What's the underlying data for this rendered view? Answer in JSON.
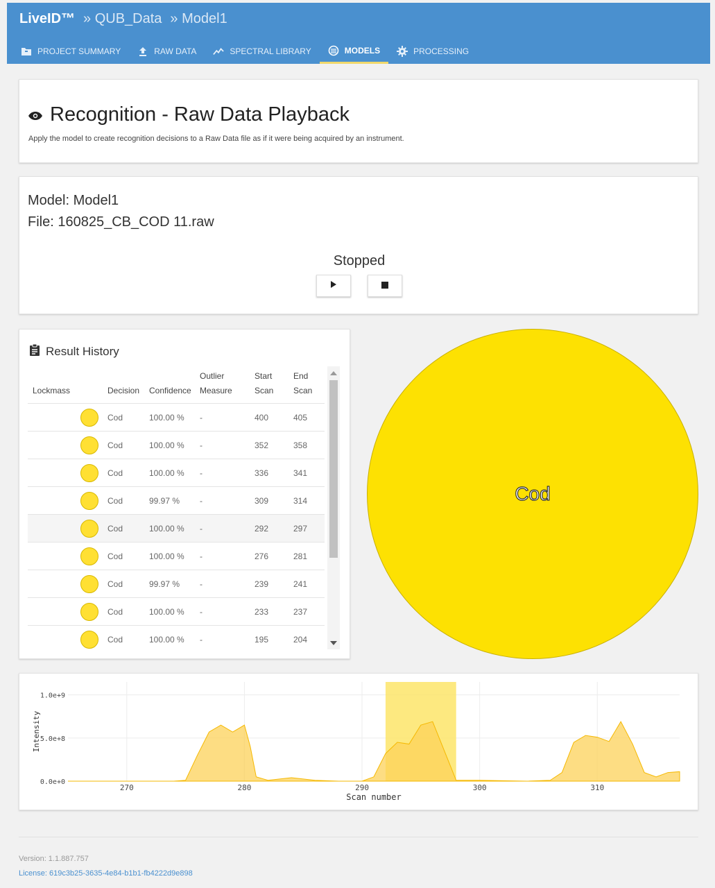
{
  "breadcrumb": {
    "brand": "LiveID™",
    "project": "» QUB_Data",
    "model": "» Model1"
  },
  "nav": [
    {
      "label": "PROJECT SUMMARY",
      "icon": "folder-icon"
    },
    {
      "label": "RAW DATA",
      "icon": "upload-icon"
    },
    {
      "label": "SPECTRAL LIBRARY",
      "icon": "line-chart-icon"
    },
    {
      "label": "MODELS",
      "icon": "globe-icon",
      "active": true
    },
    {
      "label": "PROCESSING",
      "icon": "gear-icon"
    }
  ],
  "header": {
    "title": "Recognition - Raw Data Playback",
    "description": "Apply the model to create recognition decisions to a Raw Data file as if it were being acquired by an instrument."
  },
  "playback": {
    "model": "Model: Model1",
    "file": "File: 160825_CB_COD 11.raw",
    "status": "Stopped"
  },
  "history": {
    "title": "Result History",
    "columns": {
      "lockmass": "Lockmass",
      "decision": "Decision",
      "confidence": "Confidence",
      "outlier": [
        "Outlier",
        "Measure"
      ],
      "start": [
        "Start",
        "Scan"
      ],
      "end": [
        "End",
        "Scan"
      ]
    },
    "rows": [
      {
        "decision": "Cod",
        "confidence": "100.00 %",
        "outlier": "-",
        "start": "400",
        "end": "405"
      },
      {
        "decision": "Cod",
        "confidence": "100.00 %",
        "outlier": "-",
        "start": "352",
        "end": "358"
      },
      {
        "decision": "Cod",
        "confidence": "100.00 %",
        "outlier": "-",
        "start": "336",
        "end": "341"
      },
      {
        "decision": "Cod",
        "confidence": "99.97 %",
        "outlier": "-",
        "start": "309",
        "end": "314"
      },
      {
        "decision": "Cod",
        "confidence": "100.00 %",
        "outlier": "-",
        "start": "292",
        "end": "297"
      },
      {
        "decision": "Cod",
        "confidence": "100.00 %",
        "outlier": "-",
        "start": "276",
        "end": "281"
      },
      {
        "decision": "Cod",
        "confidence": "99.97 %",
        "outlier": "-",
        "start": "239",
        "end": "241"
      },
      {
        "decision": "Cod",
        "confidence": "100.00 %",
        "outlier": "-",
        "start": "233",
        "end": "237"
      },
      {
        "decision": "Cod",
        "confidence": "100.00 %",
        "outlier": "-",
        "start": "195",
        "end": "204"
      }
    ],
    "decision_color": "#ffe033"
  },
  "pie_label": "Cod",
  "chart_data": {
    "type": "area",
    "xlabel": "Scan number",
    "ylabel": "Intensity",
    "xlim": [
      265,
      317
    ],
    "ylim": [
      0,
      1150000000.0
    ],
    "xticks": [
      "270",
      "280",
      "290",
      "300",
      "310"
    ],
    "yticks": [
      "0.0e+0",
      "5.0e+8",
      "1.0e+9"
    ],
    "highlight": [
      292,
      298
    ],
    "color": "#fcd15a",
    "series": [
      {
        "x": [
          265,
          270,
          274,
          275,
          276,
          277,
          278,
          279,
          280,
          280.5,
          281,
          282,
          284,
          286,
          288,
          290,
          291,
          292,
          293,
          294,
          295,
          296,
          297,
          298,
          300,
          304,
          306,
          307,
          308,
          309,
          310,
          311,
          312,
          313,
          314,
          315,
          316,
          317
        ],
        "y": [
          0,
          0,
          0,
          10000000.0,
          300000000.0,
          570000000.0,
          650000000.0,
          570000000.0,
          650000000.0,
          400000000.0,
          50000000.0,
          10000000.0,
          40000000.0,
          10000000.0,
          0,
          0,
          50000000.0,
          320000000.0,
          450000000.0,
          430000000.0,
          650000000.0,
          690000000.0,
          350000000.0,
          10000000.0,
          10000000.0,
          0,
          10000000.0,
          100000000.0,
          450000000.0,
          530000000.0,
          510000000.0,
          460000000.0,
          690000000.0,
          430000000.0,
          100000000.0,
          50000000.0,
          100000000.0,
          110000000.0
        ]
      }
    ]
  },
  "footer": {
    "version": "Version: 1.1.887.757",
    "license": "License: 619c3b25-3635-4e84-b1b1-fb4222d9e898"
  }
}
